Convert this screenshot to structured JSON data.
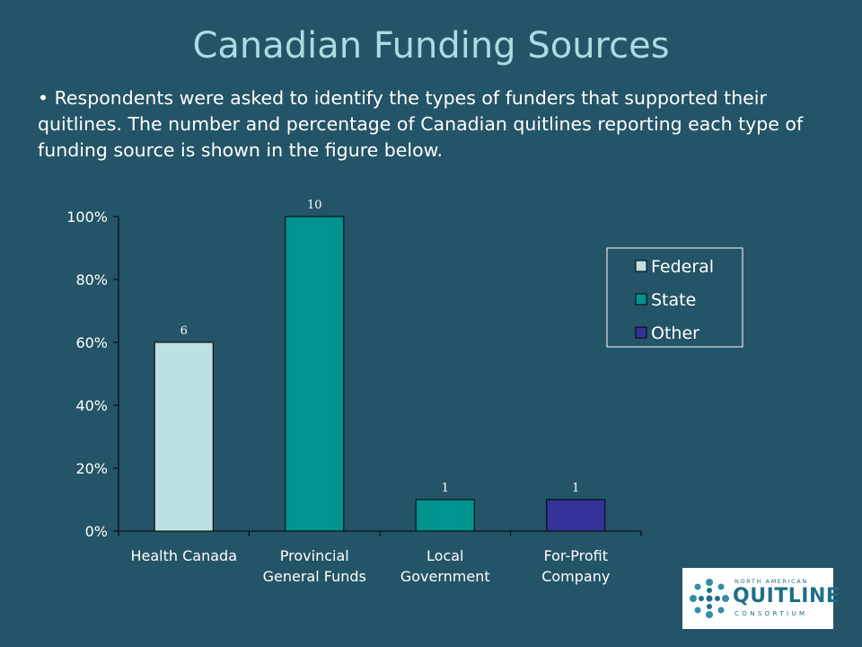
{
  "title": "Canadian Funding Sources",
  "bullet": "• Respondents were asked to identify the types of funders that supported their quitlines. The number and percentage of Canadian quitlines reporting each type of funding source is shown in the figure below.",
  "logo": {
    "north_american": "NORTH AMERICAN",
    "quitline": "QUITLINE",
    "consortium": "CONSORTIUM"
  },
  "chart_data": {
    "type": "bar",
    "categories": [
      [
        "Health Canada"
      ],
      [
        "Provincial",
        "General Funds"
      ],
      [
        "Local",
        "Government"
      ],
      [
        "For-Profit",
        "Company"
      ]
    ],
    "values": [
      60,
      100,
      10,
      10
    ],
    "data_labels": [
      "6",
      "10",
      "1",
      "1"
    ],
    "bar_series": [
      "Federal",
      "State",
      "State",
      "Other"
    ],
    "legend": [
      {
        "name": "Federal",
        "color": "#bde0e4"
      },
      {
        "name": "State",
        "color": "#00938f"
      },
      {
        "name": "Other",
        "color": "#333399"
      }
    ],
    "y_ticks": [
      "0%",
      "20%",
      "40%",
      "60%",
      "80%",
      "100%"
    ],
    "ylim": [
      0,
      100
    ],
    "legend_position": "right",
    "grid": false,
    "colors": {
      "background": "#245467",
      "title": "#a8dde3",
      "axis": "#000000"
    }
  }
}
